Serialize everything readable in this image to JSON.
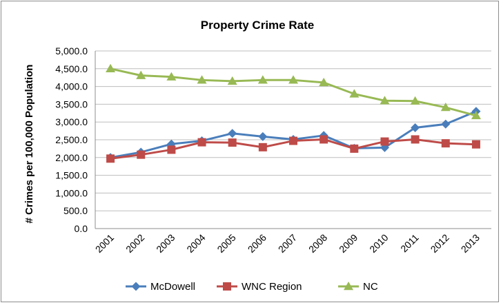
{
  "chart_data": {
    "type": "line",
    "title": "Property Crime Rate",
    "xlabel": "",
    "ylabel": "# Crimes per 100,000 Population",
    "categories": [
      "2001",
      "2002",
      "2003",
      "2004",
      "2005",
      "2006",
      "2007",
      "2008",
      "2009",
      "2010",
      "2011",
      "2012",
      "2013"
    ],
    "ylim": [
      0,
      5000
    ],
    "yticks": [
      "0.0",
      "500.0",
      "1,000.0",
      "1,500.0",
      "2,000.0",
      "2,500.0",
      "3,000.0",
      "3,500.0",
      "4,000.0",
      "4,500.0",
      "5,000.0"
    ],
    "grid": true,
    "legend_position": "bottom",
    "series": [
      {
        "name": "McDowell",
        "color": "#4a7ebb",
        "marker": "diamond",
        "values": [
          2000,
          2150,
          2380,
          2470,
          2680,
          2590,
          2510,
          2620,
          2260,
          2280,
          2840,
          2940,
          3300
        ]
      },
      {
        "name": "WNC Region",
        "color": "#be4b48",
        "marker": "square",
        "values": [
          1970,
          2080,
          2220,
          2430,
          2420,
          2290,
          2470,
          2510,
          2250,
          2450,
          2510,
          2400,
          2370
        ]
      },
      {
        "name": "NC",
        "color": "#98b954",
        "marker": "triangle",
        "values": [
          4500,
          4310,
          4270,
          4180,
          4150,
          4180,
          4180,
          4110,
          3790,
          3600,
          3590,
          3410,
          3180
        ]
      }
    ]
  }
}
